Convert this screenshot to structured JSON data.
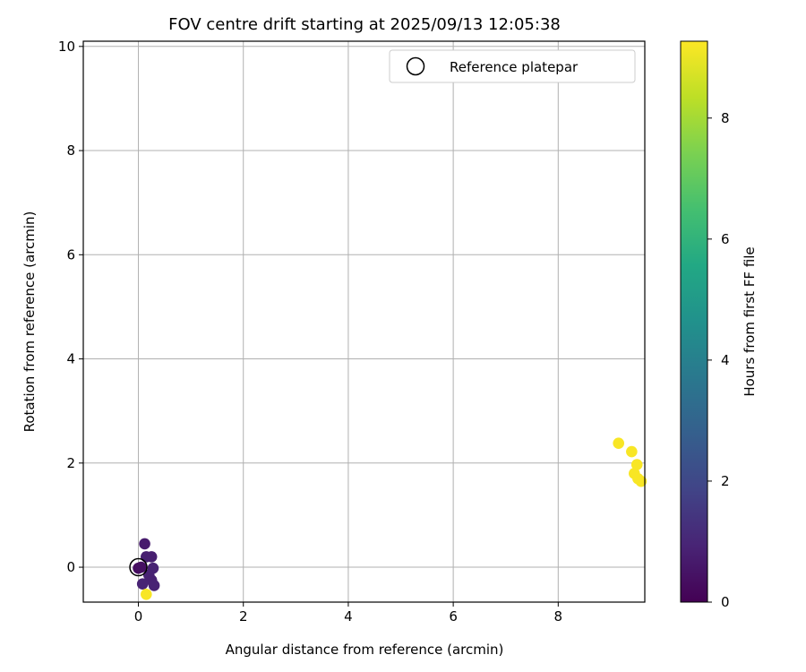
{
  "chart_data": {
    "type": "scatter",
    "title": "FOV centre drift starting at 2025/09/13 12:05:38",
    "xlabel": "Angular distance from reference (arcmin)",
    "ylabel": "Rotation from reference (arcmin)",
    "xlim": [
      -1.05,
      9.65
    ],
    "ylim": [
      -0.67,
      10.1
    ],
    "xticks": [
      0,
      2,
      4,
      6,
      8
    ],
    "yticks": [
      0,
      2,
      4,
      6,
      8,
      10
    ],
    "grid": true,
    "legend": {
      "position": "top-right",
      "entries": [
        "Reference platepar"
      ]
    },
    "reference_point": {
      "x": 0,
      "y": 0
    },
    "colorbar": {
      "label": "Hours from first FF file",
      "range": [
        0,
        9.27
      ],
      "ticks": [
        0,
        2,
        4,
        6,
        8
      ],
      "colormap": "viridis"
    },
    "points": [
      {
        "x": 0.0,
        "y": -0.02,
        "c": 0.3
      },
      {
        "x": 0.05,
        "y": 0.0,
        "c": 0.4
      },
      {
        "x": 0.12,
        "y": 0.45,
        "c": 0.7
      },
      {
        "x": 0.15,
        "y": 0.2,
        "c": 0.8
      },
      {
        "x": 0.25,
        "y": 0.2,
        "c": 0.8
      },
      {
        "x": 0.28,
        "y": -0.02,
        "c": 0.9
      },
      {
        "x": 0.2,
        "y": -0.15,
        "c": 0.9
      },
      {
        "x": 0.25,
        "y": -0.25,
        "c": 0.85
      },
      {
        "x": 0.3,
        "y": -0.35,
        "c": 0.9
      },
      {
        "x": 0.08,
        "y": -0.32,
        "c": 0.9
      },
      {
        "x": 0.15,
        "y": -0.52,
        "c": 9.2
      },
      {
        "x": 9.15,
        "y": 2.38,
        "c": 9.2
      },
      {
        "x": 9.4,
        "y": 2.22,
        "c": 9.2
      },
      {
        "x": 9.5,
        "y": 1.97,
        "c": 9.2
      },
      {
        "x": 9.45,
        "y": 1.8,
        "c": 9.2
      },
      {
        "x": 9.52,
        "y": 1.7,
        "c": 9.2
      },
      {
        "x": 9.58,
        "y": 1.65,
        "c": 9.2
      }
    ]
  }
}
